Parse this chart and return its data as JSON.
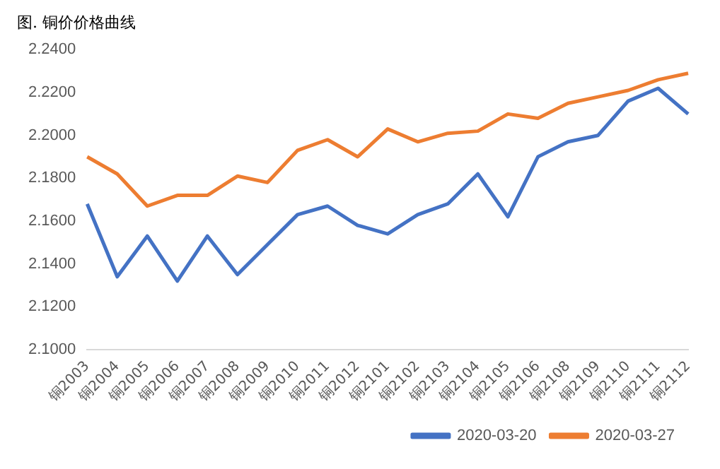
{
  "chart_data": {
    "type": "line",
    "title": "图. 铜价价格曲线",
    "categories": [
      "铜2003",
      "铜2004",
      "铜2005",
      "铜2006",
      "铜2007",
      "铜2008",
      "铜2009",
      "铜2010",
      "铜2011",
      "铜2012",
      "铜2101",
      "铜2102",
      "铜2103",
      "铜2104",
      "铜2105",
      "铜2106",
      "铜2108",
      "铜2109",
      "铜2110",
      "铜2111",
      "铜2112"
    ],
    "series": [
      {
        "name": "2020-03-20",
        "color": "#4472c4",
        "values": [
          2.168,
          2.134,
          2.153,
          2.132,
          2.153,
          2.135,
          2.149,
          2.163,
          2.167,
          2.158,
          2.154,
          2.163,
          2.168,
          2.182,
          2.162,
          2.19,
          2.197,
          2.2,
          2.216,
          2.222,
          2.21
        ]
      },
      {
        "name": "2020-03-27",
        "color": "#ed7d31",
        "values": [
          2.19,
          2.182,
          2.167,
          2.172,
          2.172,
          2.181,
          2.178,
          2.193,
          2.198,
          2.19,
          2.203,
          2.197,
          2.201,
          2.202,
          2.21,
          2.208,
          2.215,
          2.218,
          2.221,
          2.226,
          2.229
        ]
      }
    ],
    "ylim": [
      2.1,
      2.24
    ],
    "yticks": [
      {
        "value": 2.1,
        "label": "2.1000"
      },
      {
        "value": 2.12,
        "label": "2.1200"
      },
      {
        "value": 2.14,
        "label": "2.1400"
      },
      {
        "value": 2.16,
        "label": "2.1600"
      },
      {
        "value": 2.18,
        "label": "2.1800"
      },
      {
        "value": 2.2,
        "label": "2.2000"
      },
      {
        "value": 2.22,
        "label": "2.2200"
      },
      {
        "value": 2.24,
        "label": "2.2400"
      }
    ],
    "grid": false,
    "legend": "bottom right",
    "marker": "none",
    "line_style": "solid"
  }
}
